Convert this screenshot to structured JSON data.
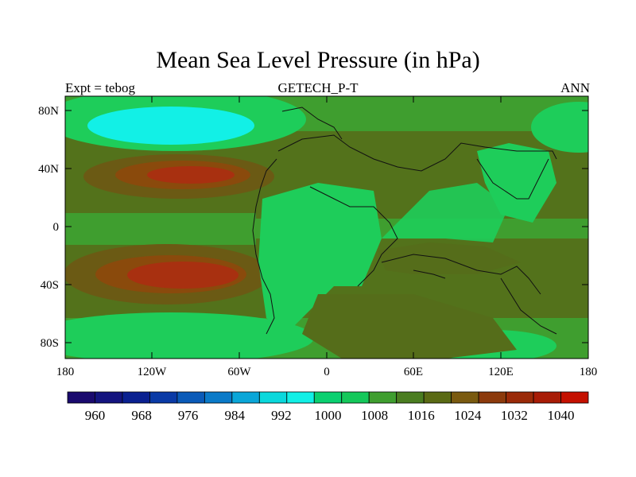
{
  "title": "Mean Sea Level Pressure (in hPa)",
  "left_label": "Expt = tebog",
  "center_label": "GETECH_P-T",
  "right_label": "ANN",
  "lat_ticks": [
    "80N",
    "40N",
    "0",
    "40S",
    "80S"
  ],
  "lon_ticks": [
    "180",
    "120W",
    "60W",
    "0",
    "60E",
    "120E",
    "180"
  ],
  "colorbar": {
    "labels": [
      "960",
      "968",
      "976",
      "984",
      "992",
      "1000",
      "1008",
      "1016",
      "1024",
      "1032",
      "1040"
    ],
    "colors": [
      "#1a0a6e",
      "#14147f",
      "#0a2090",
      "#0a3aa6",
      "#0a5ab8",
      "#0a7ac8",
      "#0aa6d8",
      "#0ad8dc",
      "#12f0e6",
      "#0ad070",
      "#14c85a",
      "#3f9e2f",
      "#4a7d20",
      "#5a6a14",
      "#7a5a10",
      "#8c3a0c",
      "#9a2a08",
      "#a81c06",
      "#c41000"
    ],
    "legend_values": [
      960,
      1040
    ]
  },
  "map_colors": {
    "ocean_base": "#3f9e2f",
    "low_cyan": "#12f0e6",
    "mid_green": "#1ecd5a",
    "high_olive": "#5a6a14",
    "high_brown": "#8a4a0c",
    "high_red": "#a82808"
  }
}
